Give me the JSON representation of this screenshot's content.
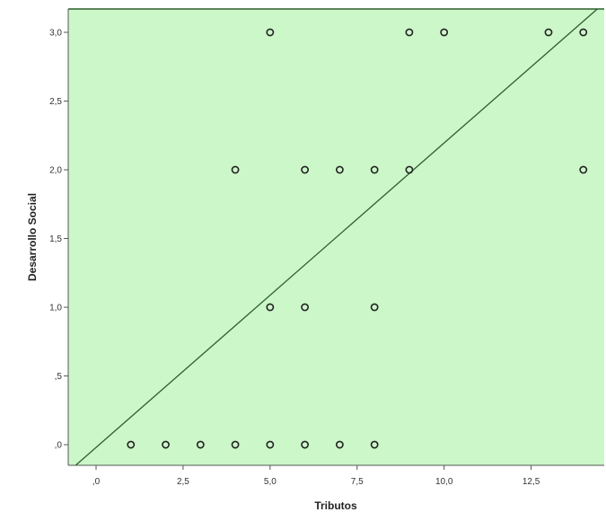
{
  "chart_data": {
    "type": "scatter",
    "title": "",
    "xlabel": "Tributos",
    "ylabel": "Desarrollo Social",
    "xlim": [
      -0.8,
      14.6
    ],
    "ylim": [
      -0.15,
      3.17
    ],
    "x_ticks": [
      {
        "value": 0,
        "label": ",0"
      },
      {
        "value": 2.5,
        "label": "2,5"
      },
      {
        "value": 5,
        "label": "5,0"
      },
      {
        "value": 7.5,
        "label": "7,5"
      },
      {
        "value": 10,
        "label": "10,0"
      },
      {
        "value": 12.5,
        "label": "12,5"
      }
    ],
    "y_ticks": [
      {
        "value": 0,
        "label": ",0"
      },
      {
        "value": 0.5,
        "label": ",5"
      },
      {
        "value": 1,
        "label": "1,0"
      },
      {
        "value": 1.5,
        "label": "1,5"
      },
      {
        "value": 2,
        "label": "2,0"
      },
      {
        "value": 2.5,
        "label": "2,5"
      },
      {
        "value": 3,
        "label": "3,0"
      }
    ],
    "grid": false,
    "legend": "none",
    "points": [
      {
        "x": 1,
        "y": 0
      },
      {
        "x": 2,
        "y": 0
      },
      {
        "x": 3,
        "y": 0
      },
      {
        "x": 4,
        "y": 0
      },
      {
        "x": 5,
        "y": 0
      },
      {
        "x": 6,
        "y": 0
      },
      {
        "x": 7,
        "y": 0
      },
      {
        "x": 8,
        "y": 0
      },
      {
        "x": 5,
        "y": 1
      },
      {
        "x": 6,
        "y": 1
      },
      {
        "x": 8,
        "y": 1
      },
      {
        "x": 4,
        "y": 2
      },
      {
        "x": 6,
        "y": 2
      },
      {
        "x": 7,
        "y": 2
      },
      {
        "x": 8,
        "y": 2
      },
      {
        "x": 9,
        "y": 2
      },
      {
        "x": 14,
        "y": 2
      },
      {
        "x": 5,
        "y": 3
      },
      {
        "x": 9,
        "y": 3
      },
      {
        "x": 10,
        "y": 3
      },
      {
        "x": 13,
        "y": 3
      },
      {
        "x": 14,
        "y": 3
      }
    ],
    "fit_line": {
      "intercept": -0.02,
      "slope": 0.2215
    },
    "colors": {
      "plot_background": "#ccf7c9",
      "point_stroke": "#222222",
      "fit_line": "#2e5e2e",
      "axis": "#555555"
    }
  }
}
